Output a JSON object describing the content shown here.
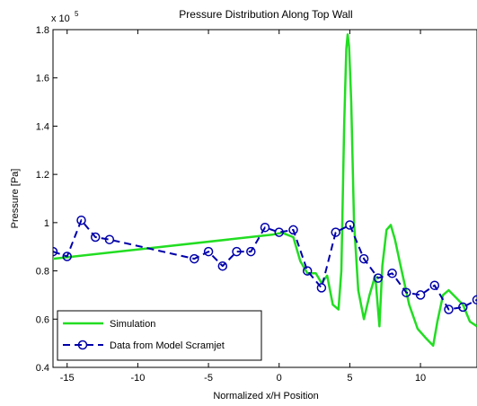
{
  "chart_data": {
    "type": "line",
    "title": "Pressure Distribution Along Top Wall",
    "xlabel": "Normalized x/H Position",
    "ylabel": "Pressure [Pa]",
    "y_scale_base": "x 10",
    "y_scale_exponent": "5",
    "xlim": [
      -16,
      14
    ],
    "ylim": [
      0.4,
      1.8
    ],
    "y_multiplier": 100000,
    "x_ticks": [
      -15,
      -10,
      -5,
      0,
      5,
      10
    ],
    "x_tick_labels": [
      "-15",
      "-10",
      "-5",
      "0",
      "5",
      "10"
    ],
    "y_ticks": [
      0.4,
      0.6,
      0.8,
      1.0,
      1.2,
      1.4,
      1.6,
      1.8
    ],
    "y_tick_labels": [
      "0.4",
      "0.6",
      "0.8",
      "1",
      "1.2",
      "1.4",
      "1.6",
      "1.8"
    ],
    "grid": false,
    "legend_position": "bottom-left",
    "series": [
      {
        "name": "Simulation",
        "color": "#22dd22",
        "style": "solid",
        "x": [
          -16,
          -0.5,
          0.2,
          1.0,
          1.5,
          2.0,
          2.6,
          3.0,
          3.4,
          3.8,
          4.2,
          4.4,
          4.6,
          4.75,
          4.85,
          4.95,
          5.1,
          5.3,
          5.6,
          6.0,
          6.4,
          6.8,
          7.1,
          7.3,
          7.6,
          7.9,
          8.2,
          8.6,
          9.2,
          9.8,
          10.4,
          10.9,
          11.2,
          11.6,
          12.0,
          12.5,
          13.0,
          13.5,
          14.0
        ],
        "y": [
          0.85,
          0.95,
          0.958,
          0.94,
          0.84,
          0.79,
          0.79,
          0.75,
          0.78,
          0.66,
          0.64,
          0.8,
          1.4,
          1.72,
          1.78,
          1.73,
          1.5,
          1.0,
          0.72,
          0.6,
          0.7,
          0.78,
          0.57,
          0.82,
          0.97,
          0.99,
          0.93,
          0.82,
          0.66,
          0.56,
          0.52,
          0.49,
          0.59,
          0.7,
          0.72,
          0.69,
          0.66,
          0.59,
          0.57
        ]
      },
      {
        "name": "Data from Model Scramjet",
        "color": "#0000aa",
        "style": "dashed-marker",
        "marker": "circle",
        "x": [
          -16.0,
          -15.0,
          -14.0,
          -13.0,
          -12.0,
          -6.0,
          -5.0,
          -4.0,
          -3.0,
          -2.0,
          -1.0,
          0.0,
          1.0,
          2.0,
          3.0,
          4.0,
          5.0,
          6.0,
          7.0,
          8.0,
          9.0,
          10.0,
          11.0,
          12.0,
          13.0,
          14.0
        ],
        "y": [
          0.88,
          0.86,
          1.01,
          0.94,
          0.93,
          0.85,
          0.88,
          0.82,
          0.88,
          0.88,
          0.98,
          0.96,
          0.97,
          0.8,
          0.73,
          0.96,
          0.99,
          0.85,
          0.77,
          0.79,
          0.71,
          0.7,
          0.74,
          0.64,
          0.65,
          0.68
        ]
      }
    ]
  }
}
